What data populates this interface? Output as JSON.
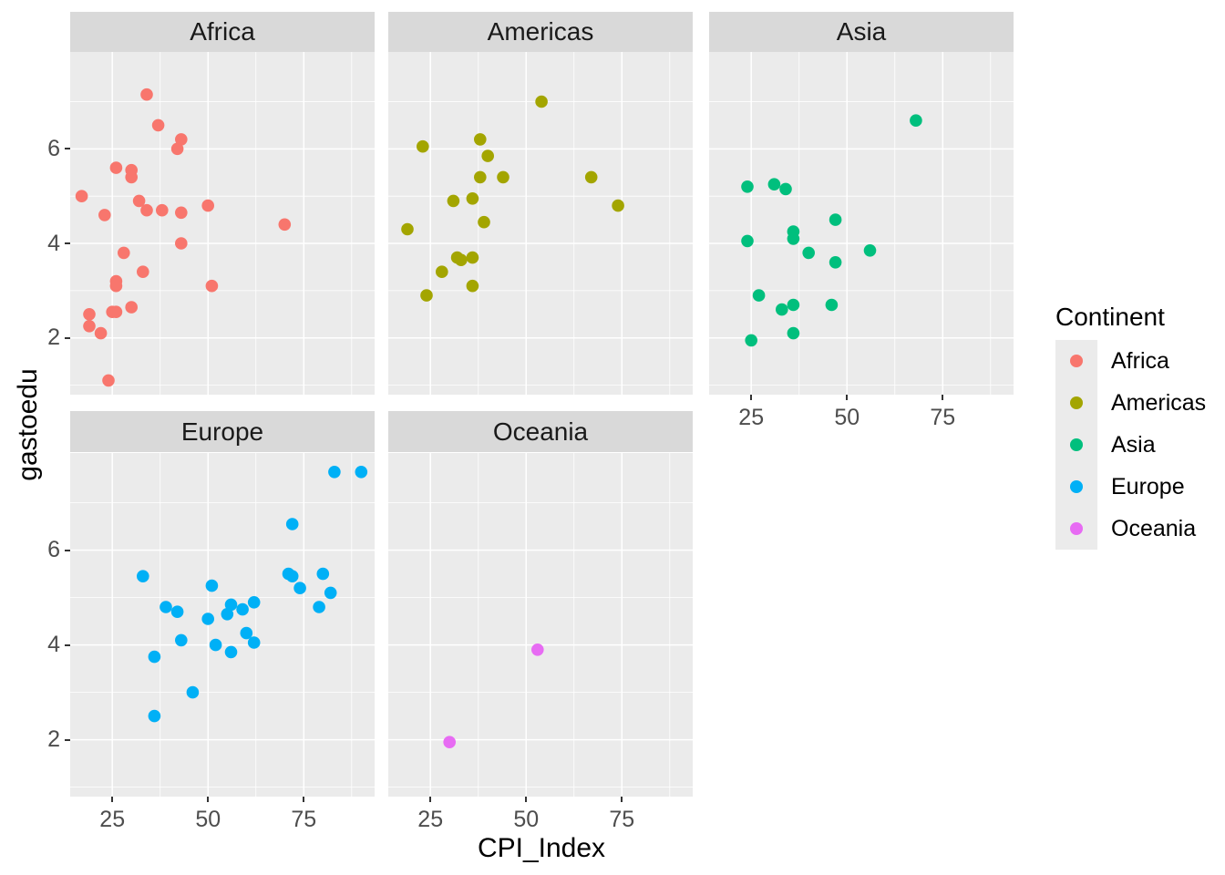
{
  "chart_data": {
    "type": "scatter",
    "title": "",
    "xlabel": "CPI_Index",
    "ylabel": "gastoedu",
    "facet_variable": "Continent",
    "x_ticks": [
      25,
      50,
      75
    ],
    "x_minor_ticks": [
      37.5,
      62.5,
      87.5
    ],
    "y_ticks": [
      6,
      4,
      2
    ],
    "y_minor_ticks": [
      7,
      5,
      3,
      1
    ],
    "xlim": [
      14,
      93.5
    ],
    "ylim": [
      0.8,
      8.05
    ],
    "grid": true,
    "legend": {
      "title": "Continent",
      "position": "right",
      "entries": [
        {
          "label": "Africa",
          "color": "#F8766D"
        },
        {
          "label": "Americas",
          "color": "#A3A500"
        },
        {
          "label": "Asia",
          "color": "#00BF7D"
        },
        {
          "label": "Europe",
          "color": "#00B0F6"
        },
        {
          "label": "Oceania",
          "color": "#E76BF3"
        }
      ]
    },
    "facets": [
      {
        "name": "Africa",
        "color": "#F8766D",
        "points": [
          [
            34,
            7.15
          ],
          [
            37,
            6.5
          ],
          [
            43,
            6.2
          ],
          [
            42,
            6.0
          ],
          [
            26,
            5.6
          ],
          [
            30,
            5.55
          ],
          [
            30,
            5.4
          ],
          [
            17,
            5.0
          ],
          [
            32,
            4.9
          ],
          [
            34,
            4.7
          ],
          [
            38,
            4.7
          ],
          [
            23,
            4.6
          ],
          [
            43,
            4.65
          ],
          [
            50,
            4.8
          ],
          [
            70,
            4.4
          ],
          [
            43,
            4.0
          ],
          [
            28,
            3.8
          ],
          [
            33,
            3.4
          ],
          [
            26,
            3.2
          ],
          [
            26,
            3.1
          ],
          [
            51,
            3.1
          ],
          [
            30,
            2.65
          ],
          [
            25,
            2.55
          ],
          [
            26,
            2.55
          ],
          [
            19,
            2.5
          ],
          [
            19,
            2.25
          ],
          [
            22,
            2.1
          ],
          [
            24,
            1.1
          ]
        ]
      },
      {
        "name": "Americas",
        "color": "#A3A500",
        "points": [
          [
            54,
            7.0
          ],
          [
            23,
            6.05
          ],
          [
            38,
            6.2
          ],
          [
            40,
            5.85
          ],
          [
            38,
            5.4
          ],
          [
            44,
            5.4
          ],
          [
            67,
            5.4
          ],
          [
            31,
            4.9
          ],
          [
            36,
            4.95
          ],
          [
            74,
            4.8
          ],
          [
            39,
            4.45
          ],
          [
            19,
            4.3
          ],
          [
            32,
            3.7
          ],
          [
            33,
            3.65
          ],
          [
            36,
            3.7
          ],
          [
            28,
            3.4
          ],
          [
            36,
            3.1
          ],
          [
            24,
            2.9
          ]
        ]
      },
      {
        "name": "Asia",
        "color": "#00BF7D",
        "points": [
          [
            68,
            6.6
          ],
          [
            24,
            5.2
          ],
          [
            31,
            5.25
          ],
          [
            34,
            5.15
          ],
          [
            47,
            4.5
          ],
          [
            36,
            4.25
          ],
          [
            36,
            4.1
          ],
          [
            24,
            4.05
          ],
          [
            40,
            3.8
          ],
          [
            56,
            3.85
          ],
          [
            47,
            3.6
          ],
          [
            27,
            2.9
          ],
          [
            33,
            2.6
          ],
          [
            36,
            2.7
          ],
          [
            46,
            2.7
          ],
          [
            36,
            2.1
          ],
          [
            25,
            1.95
          ]
        ]
      },
      {
        "name": "Europe",
        "color": "#00B0F6",
        "points": [
          [
            83,
            7.65
          ],
          [
            90,
            7.65
          ],
          [
            72,
            6.55
          ],
          [
            33,
            5.45
          ],
          [
            71,
            5.5
          ],
          [
            72,
            5.45
          ],
          [
            80,
            5.5
          ],
          [
            74,
            5.2
          ],
          [
            82,
            5.1
          ],
          [
            51,
            5.25
          ],
          [
            79,
            4.8
          ],
          [
            62,
            4.9
          ],
          [
            39,
            4.8
          ],
          [
            42,
            4.7
          ],
          [
            56,
            4.85
          ],
          [
            55,
            4.65
          ],
          [
            59,
            4.75
          ],
          [
            50,
            4.55
          ],
          [
            60,
            4.25
          ],
          [
            43,
            4.1
          ],
          [
            62,
            4.05
          ],
          [
            52,
            4.0
          ],
          [
            56,
            3.85
          ],
          [
            36,
            3.75
          ],
          [
            46,
            3.0
          ],
          [
            36,
            2.5
          ]
        ]
      },
      {
        "name": "Oceania",
        "color": "#E76BF3",
        "points": [
          [
            53,
            3.9
          ],
          [
            30,
            1.95
          ]
        ]
      }
    ]
  },
  "theme": {
    "panel_background": "#EBEBEB",
    "strip_background": "#D9D9D9",
    "grid_color": "#FFFFFF",
    "tick_label_color": "#4D4D4D",
    "tick_mark_color": "#333333",
    "axis_title_color": "#000000"
  }
}
